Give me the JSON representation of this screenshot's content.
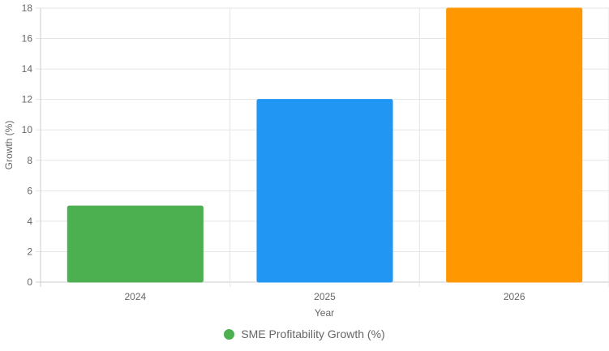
{
  "chart_data": {
    "type": "bar",
    "categories": [
      "2024",
      "2025",
      "2026"
    ],
    "series": [
      {
        "name": "SME Profitability Growth (%)",
        "values": [
          5,
          12,
          18
        ]
      }
    ],
    "bar_colors": [
      "#4caf50",
      "#2196f3",
      "#ff9800"
    ],
    "legend_color": "#4caf50",
    "title": "",
    "xlabel": "Year",
    "ylabel": "Growth (%)",
    "ylim": [
      0,
      18
    ],
    "yticks": [
      "0",
      "2",
      "4",
      "6",
      "8",
      "10",
      "12",
      "14",
      "16",
      "18"
    ],
    "legend_position": "bottom",
    "grid": true
  }
}
